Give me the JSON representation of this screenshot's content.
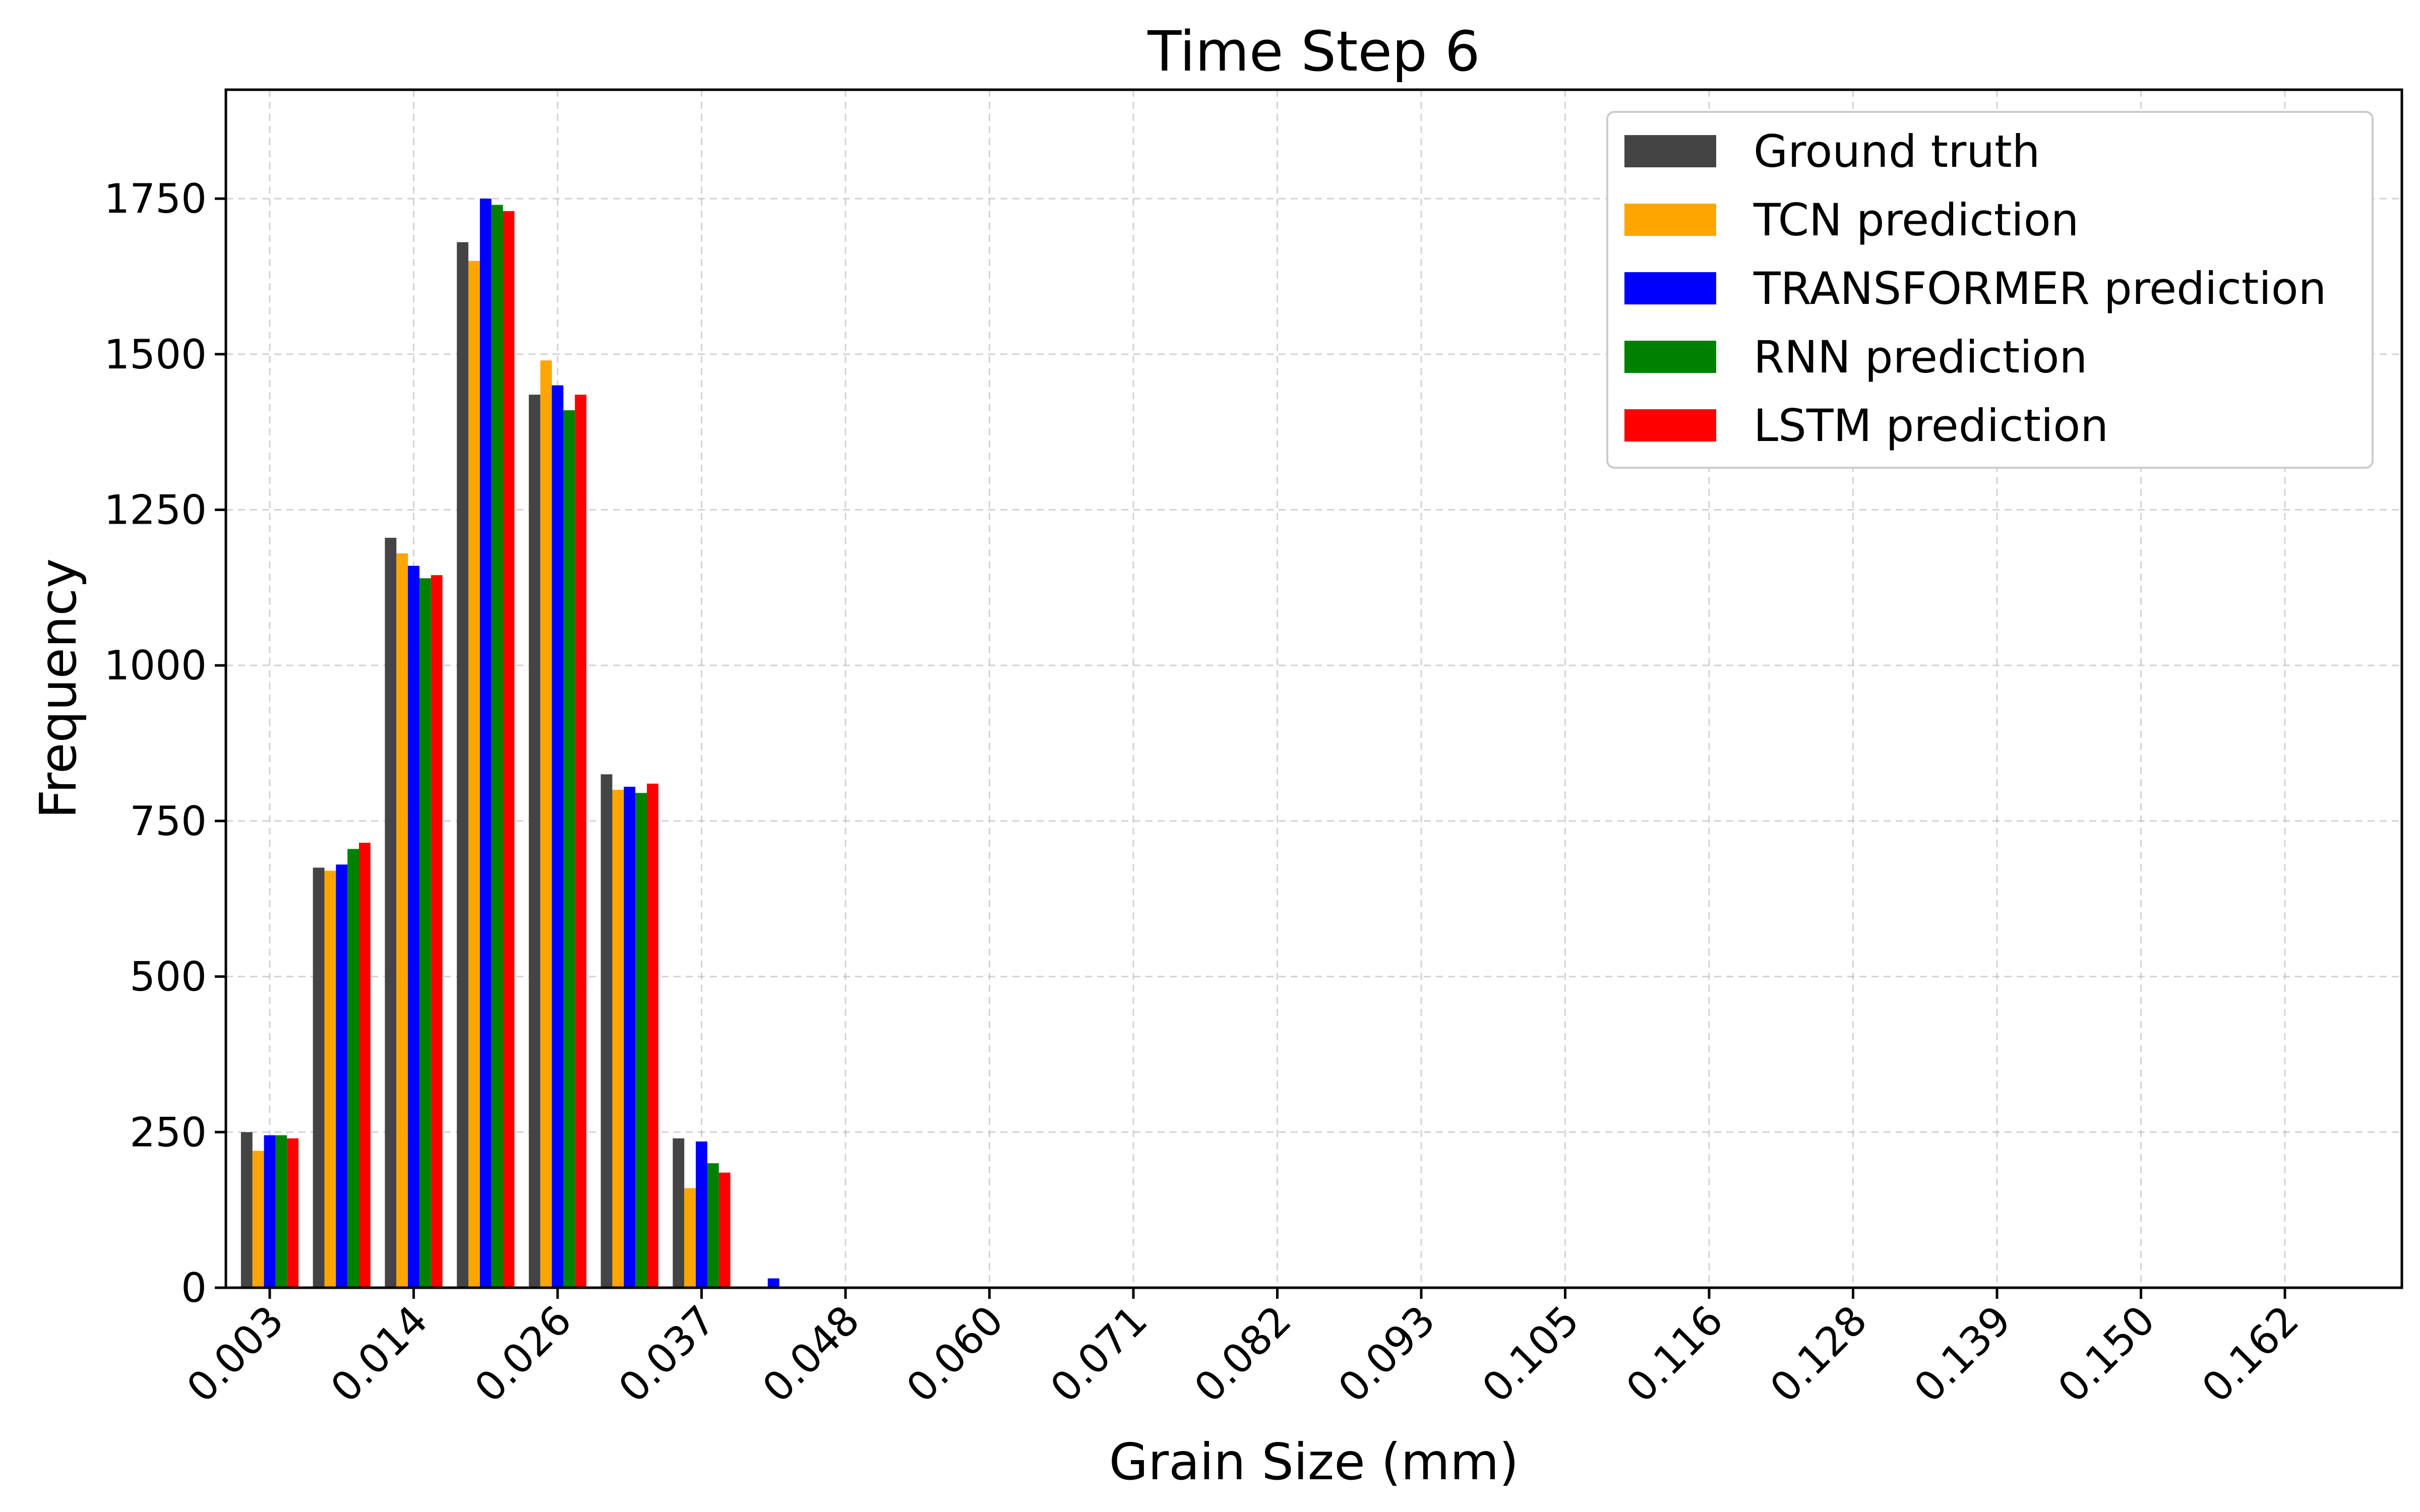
{
  "chart_data": {
    "type": "bar",
    "title": "Time Step 6",
    "xlabel": "Grain Size (mm)",
    "ylabel": "Frequency",
    "ylim": [
      0,
      1925
    ],
    "yticks": [
      "0",
      "250",
      "500",
      "750",
      "1000",
      "1250",
      "1500",
      "1750"
    ],
    "ytick_values": [
      0,
      250,
      500,
      750,
      1000,
      1250,
      1500,
      1750
    ],
    "xticks": [
      "0.003",
      "0.014",
      "0.026",
      "0.037",
      "0.048",
      "0.060",
      "0.071",
      "0.082",
      "0.093",
      "0.105",
      "0.116",
      "0.128",
      "0.139",
      "0.150",
      "0.162"
    ],
    "grid": true,
    "legend_position": "top-right",
    "bin_count": 30,
    "bins_per_tick": 2,
    "series": [
      {
        "name": "Ground truth",
        "color": "#444444",
        "values": [
          250,
          675,
          1205,
          1680,
          1435,
          825,
          240,
          0,
          0,
          0,
          0,
          0,
          0,
          0,
          0,
          0,
          0,
          0,
          0,
          0,
          0,
          0,
          0,
          0,
          0,
          0,
          0,
          0,
          0,
          0
        ]
      },
      {
        "name": "TCN prediction",
        "color": "#FFA500",
        "values": [
          220,
          670,
          1180,
          1650,
          1490,
          800,
          160,
          0,
          0,
          0,
          0,
          0,
          0,
          0,
          0,
          0,
          0,
          0,
          0,
          0,
          0,
          0,
          0,
          0,
          0,
          0,
          0,
          0,
          0,
          0
        ]
      },
      {
        "name": "TRANSFORMER prediction",
        "color": "#0000FF",
        "values": [
          245,
          680,
          1160,
          1750,
          1450,
          805,
          235,
          15,
          0,
          0,
          0,
          0,
          0,
          0,
          0,
          0,
          0,
          0,
          0,
          0,
          0,
          0,
          0,
          0,
          0,
          0,
          0,
          0,
          0,
          0
        ]
      },
      {
        "name": "RNN prediction",
        "color": "#008000",
        "values": [
          245,
          705,
          1140,
          1740,
          1410,
          795,
          200,
          0,
          0,
          0,
          0,
          0,
          0,
          0,
          0,
          0,
          0,
          0,
          0,
          0,
          0,
          0,
          0,
          0,
          0,
          0,
          0,
          0,
          0,
          0
        ]
      },
      {
        "name": "LSTM prediction",
        "color": "#FF0000",
        "values": [
          240,
          715,
          1145,
          1730,
          1435,
          810,
          185,
          0,
          0,
          0,
          0,
          0,
          0,
          0,
          0,
          0,
          0,
          0,
          0,
          0,
          0,
          0,
          0,
          0,
          0,
          0,
          0,
          0,
          0,
          0
        ]
      }
    ]
  }
}
